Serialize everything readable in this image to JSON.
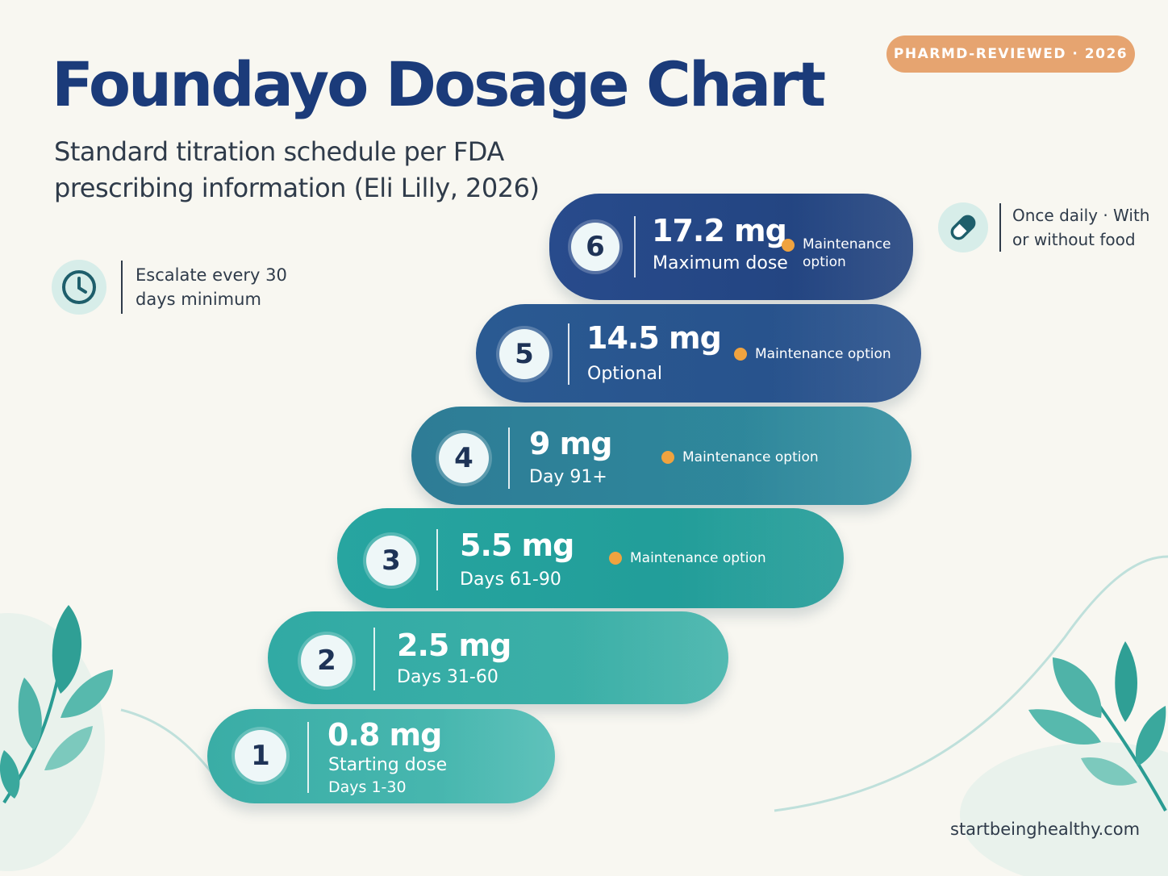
{
  "header": {
    "title": "Foundayo Dosage Chart",
    "subtitle": "Standard titration schedule per FDA prescribing information (Eli Lilly, 2026)",
    "badge": "PHARMD-REVIEWED · 2026"
  },
  "notes": {
    "escalate": {
      "icon": "clock-icon",
      "text": "Escalate every 30 days minimum"
    },
    "food": {
      "icon": "pill-icon",
      "text": "Once daily · With or without food"
    }
  },
  "steps": [
    {
      "number": "1",
      "dose": "0.8 mg",
      "label": "Starting dose",
      "sublabel": "Days 1-30",
      "maintenance": ""
    },
    {
      "number": "2",
      "dose": "2.5 mg",
      "label": "Days 31-60",
      "sublabel": "",
      "maintenance": ""
    },
    {
      "number": "3",
      "dose": "5.5 mg",
      "label": "Days 61-90",
      "sublabel": "",
      "maintenance": "Maintenance option"
    },
    {
      "number": "4",
      "dose": "9 mg",
      "label": "Day 91+",
      "sublabel": "",
      "maintenance": "Maintenance option"
    },
    {
      "number": "5",
      "dose": "14.5 mg",
      "label": "Optional",
      "sublabel": "",
      "maintenance": "Maintenance option"
    },
    {
      "number": "6",
      "dose": "17.2 mg",
      "label": "Maximum dose",
      "sublabel": "",
      "maintenance": "Maintenance option"
    }
  ],
  "footer": {
    "website": "startbeinghealthy.com"
  },
  "colors": {
    "title": "#1b3b7a",
    "badge": "#e6a470",
    "accent_dot": "#f0a33f",
    "step_navy": "#284b8c",
    "step_teal": "#27a5a0"
  }
}
